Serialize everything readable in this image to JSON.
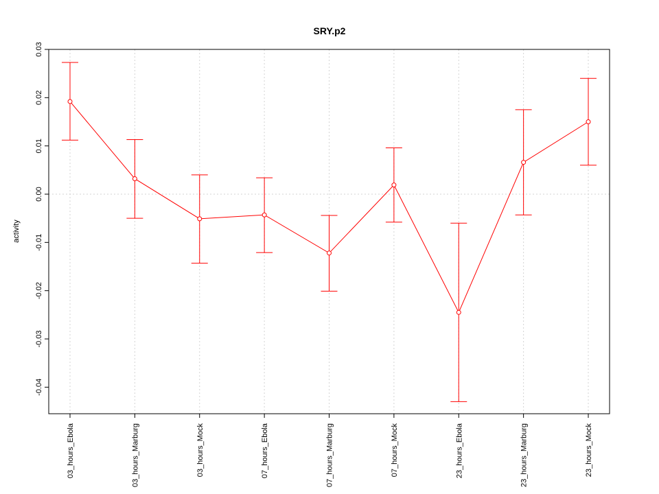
{
  "chart_data": {
    "type": "line",
    "title": "SRY.p2",
    "xlabel": "",
    "ylabel": "activity",
    "categories": [
      "03_hours_Ebola",
      "03_hours_Marburg",
      "03_hours_Mock",
      "07_hours_Ebola",
      "07_hours_Marburg",
      "07_hours_Mock",
      "23_hours_Ebola",
      "23_hours_Marburg",
      "23_hours_Mock"
    ],
    "values": [
      0.0192,
      0.0032,
      -0.0051,
      -0.0043,
      -0.0122,
      0.0019,
      -0.0245,
      0.0066,
      0.015
    ],
    "error_lower": [
      0.0112,
      -0.005,
      -0.0143,
      -0.0121,
      -0.0201,
      -0.0058,
      -0.043,
      -0.0043,
      0.006
    ],
    "error_upper": [
      0.0273,
      0.0113,
      0.004,
      0.0034,
      -0.0044,
      0.0096,
      -0.006,
      0.0175,
      0.024
    ],
    "yticks": [
      0.03,
      0.02,
      0.01,
      0.0,
      -0.01,
      -0.02,
      -0.03,
      -0.04
    ],
    "ytick_labels": [
      "0.03",
      "0.02",
      "0.01",
      "0.00",
      "-0.01",
      "-0.02",
      "-0.03",
      "-0.04"
    ],
    "ylim": [
      -0.0455,
      0.03
    ],
    "grid": true,
    "series_color": "#ff0000",
    "grid_color": "#d3d3d3"
  }
}
